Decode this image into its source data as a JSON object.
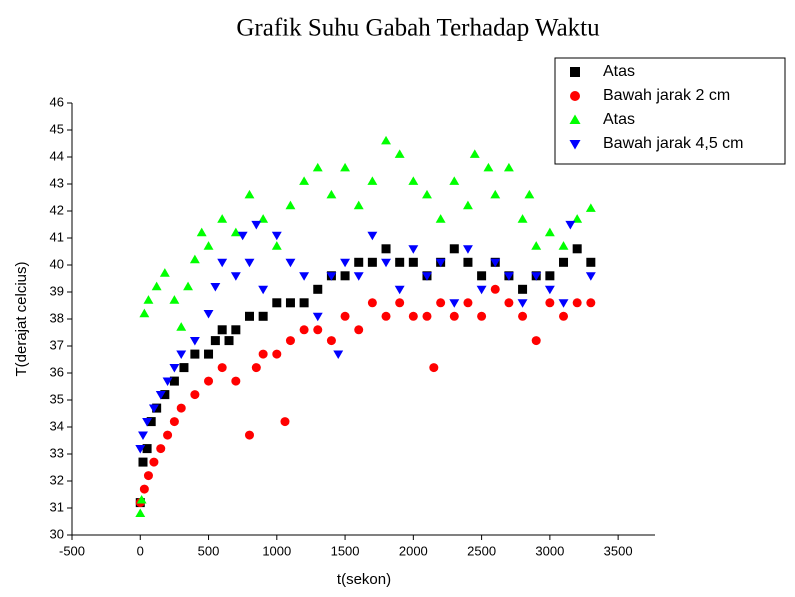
{
  "chart_data": {
    "type": "scatter",
    "title": "Grafik Suhu Gabah Terhadap Waktu",
    "xlabel": "t(sekon)",
    "ylabel": "T(derajat celcius)",
    "xlim": [
      -500,
      3770
    ],
    "ylim": [
      30,
      46
    ],
    "xticks": [
      -500,
      0,
      500,
      1000,
      1500,
      2000,
      2500,
      3000,
      3500
    ],
    "yticks": [
      30,
      31,
      32,
      33,
      34,
      35,
      36,
      37,
      38,
      39,
      40,
      41,
      42,
      43,
      44,
      45,
      46
    ],
    "legend": "upper right",
    "series": [
      {
        "name": "Atas",
        "color": "#000000",
        "marker": "square",
        "x": [
          0,
          20,
          50,
          80,
          120,
          180,
          250,
          320,
          400,
          500,
          550,
          600,
          650,
          700,
          800,
          900,
          1000,
          1100,
          1200,
          1300,
          1400,
          1500,
          1600,
          1700,
          1800,
          1900,
          2000,
          2100,
          2200,
          2300,
          2400,
          2500,
          2600,
          2700,
          2800,
          2900,
          3000,
          3100,
          3200,
          3300
        ],
        "values": [
          31.2,
          32.7,
          33.2,
          34.2,
          34.7,
          35.2,
          35.7,
          36.2,
          36.7,
          36.7,
          37.2,
          37.6,
          37.2,
          37.6,
          38.1,
          38.1,
          38.6,
          38.6,
          38.6,
          39.1,
          39.6,
          39.6,
          40.1,
          40.1,
          40.6,
          40.1,
          40.1,
          39.6,
          40.1,
          40.6,
          40.1,
          39.6,
          40.1,
          39.6,
          39.1,
          39.6,
          39.6,
          40.1,
          40.6,
          40.1
        ]
      },
      {
        "name": "Bawah jarak 2 cm",
        "color": "#ff0000",
        "marker": "circle",
        "x": [
          0,
          30,
          60,
          100,
          150,
          200,
          250,
          300,
          400,
          500,
          600,
          700,
          800,
          850,
          900,
          1000,
          1060,
          1100,
          1200,
          1300,
          1400,
          1500,
          1600,
          1700,
          1800,
          1900,
          2000,
          2100,
          2150,
          2200,
          2300,
          2400,
          2500,
          2600,
          2700,
          2800,
          2900,
          3000,
          3100,
          3200,
          3300
        ],
        "values": [
          31.2,
          31.7,
          32.2,
          32.7,
          33.2,
          33.7,
          34.2,
          34.7,
          35.2,
          35.7,
          36.2,
          35.7,
          33.7,
          36.2,
          36.7,
          36.7,
          34.2,
          37.2,
          37.6,
          37.6,
          37.2,
          38.1,
          37.6,
          38.6,
          38.1,
          38.6,
          38.1,
          38.1,
          36.2,
          38.6,
          38.1,
          38.6,
          38.1,
          39.1,
          38.6,
          38.1,
          37.2,
          38.6,
          38.1,
          38.6,
          38.6
        ]
      },
      {
        "name": "Atas",
        "color": "#00ff00",
        "marker": "triangle-up",
        "x": [
          0,
          10,
          30,
          60,
          120,
          180,
          250,
          300,
          350,
          400,
          450,
          500,
          600,
          700,
          800,
          900,
          1000,
          1100,
          1200,
          1300,
          1400,
          1500,
          1600,
          1700,
          1800,
          1900,
          2000,
          2100,
          2200,
          2300,
          2400,
          2450,
          2550,
          2600,
          2700,
          2800,
          2850,
          2900,
          3000,
          3100,
          3200,
          3300
        ],
        "values": [
          30.8,
          31.3,
          38.2,
          38.7,
          39.2,
          39.7,
          38.7,
          37.7,
          39.2,
          40.2,
          41.2,
          40.7,
          41.7,
          41.2,
          42.6,
          41.7,
          40.7,
          42.2,
          43.1,
          43.6,
          42.6,
          43.6,
          42.2,
          43.1,
          44.6,
          44.1,
          43.1,
          42.6,
          41.7,
          43.1,
          42.2,
          44.1,
          43.6,
          42.6,
          43.6,
          41.7,
          42.6,
          40.7,
          41.2,
          40.7,
          41.7,
          42.1
        ]
      },
      {
        "name": "Bawah jarak 4,5 cm",
        "color": "#0000ff",
        "marker": "triangle-down",
        "x": [
          0,
          20,
          50,
          100,
          150,
          200,
          250,
          300,
          400,
          500,
          550,
          600,
          700,
          750,
          800,
          850,
          900,
          1000,
          1100,
          1200,
          1300,
          1400,
          1450,
          1500,
          1600,
          1700,
          1800,
          1900,
          2000,
          2100,
          2200,
          2300,
          2400,
          2500,
          2600,
          2700,
          2800,
          2900,
          3000,
          3100,
          3150,
          3300
        ],
        "values": [
          33.2,
          33.7,
          34.2,
          34.7,
          35.2,
          35.7,
          36.2,
          36.7,
          37.2,
          38.2,
          39.2,
          40.1,
          39.6,
          41.1,
          40.1,
          41.5,
          39.1,
          41.1,
          40.1,
          39.6,
          38.1,
          39.6,
          36.7,
          40.1,
          39.6,
          41.1,
          40.1,
          39.1,
          40.6,
          39.6,
          40.1,
          38.6,
          40.6,
          39.1,
          40.1,
          39.6,
          38.6,
          39.6,
          39.1,
          38.6,
          41.5,
          39.6
        ]
      }
    ]
  }
}
